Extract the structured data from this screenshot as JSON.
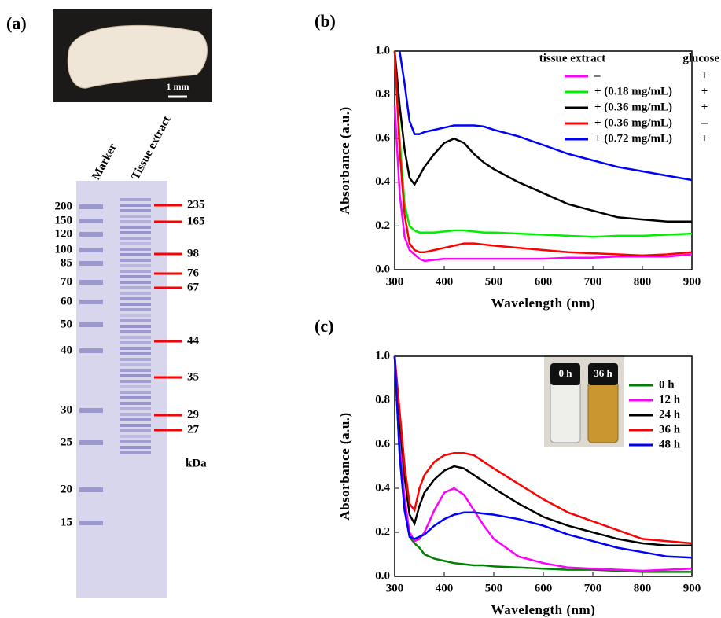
{
  "panel_a": {
    "label": "(a)",
    "scale_bar": "1 mm",
    "lanes": [
      "Marker",
      "Tissue extract"
    ],
    "marker_kda": [
      200,
      150,
      120,
      100,
      85,
      70,
      60,
      50,
      40,
      30,
      25,
      20,
      15
    ],
    "band_kda": [
      235,
      165,
      98,
      76,
      67,
      44,
      35,
      29,
      27
    ],
    "unit": "kDa"
  },
  "chart_data": [
    {
      "type": "line",
      "panel_label": "(b)",
      "xlabel": "Wavelength (nm)",
      "ylabel": "Absorbance (a.u.)",
      "legend_position": "upper right",
      "legend_title": [
        "tissue extract",
        "glucose"
      ],
      "x": [
        300,
        310,
        320,
        330,
        340,
        350,
        360,
        380,
        400,
        420,
        440,
        460,
        480,
        500,
        550,
        600,
        650,
        700,
        750,
        800,
        850,
        900
      ],
      "xlim": [
        300,
        900
      ],
      "xticks": [
        300,
        400,
        500,
        600,
        700,
        800,
        900
      ],
      "ylim": [
        0,
        1.0
      ],
      "yticks": [
        {
          "value": 0,
          "label": "0.0"
        },
        {
          "value": 0.2,
          "label": "0.2"
        },
        {
          "value": 0.4,
          "label": "0.4"
        },
        {
          "value": 0.6,
          "label": "0.6"
        },
        {
          "value": 0.8,
          "label": "0.8"
        },
        {
          "value": 1.0,
          "label": "1.0"
        }
      ],
      "series": [
        {
          "name": "–",
          "glucose": "+",
          "color": "#ff00ff",
          "values": [
            0.75,
            0.35,
            0.15,
            0.09,
            0.07,
            0.05,
            0.04,
            0.045,
            0.05,
            0.05,
            0.05,
            0.05,
            0.05,
            0.05,
            0.05,
            0.05,
            0.055,
            0.055,
            0.06,
            0.06,
            0.06,
            0.07
          ]
        },
        {
          "name": "+ (0.18 mg/mL)",
          "glucose": "+",
          "color": "#00ee00",
          "values": [
            1.0,
            0.6,
            0.3,
            0.2,
            0.18,
            0.17,
            0.17,
            0.17,
            0.175,
            0.18,
            0.18,
            0.175,
            0.17,
            0.17,
            0.165,
            0.16,
            0.155,
            0.15,
            0.155,
            0.155,
            0.16,
            0.165
          ]
        },
        {
          "name": "+ (0.36 mg/mL)",
          "glucose": "+",
          "color": "#000000",
          "values": [
            1.0,
            0.75,
            0.55,
            0.42,
            0.39,
            0.43,
            0.47,
            0.53,
            0.58,
            0.6,
            0.58,
            0.53,
            0.49,
            0.46,
            0.4,
            0.35,
            0.3,
            0.27,
            0.24,
            0.23,
            0.22,
            0.22
          ]
        },
        {
          "name": "+ (0.36 mg/mL)",
          "glucose": "–",
          "color": "#ff0000",
          "values": [
            1.0,
            0.55,
            0.25,
            0.12,
            0.09,
            0.08,
            0.08,
            0.09,
            0.1,
            0.11,
            0.12,
            0.12,
            0.115,
            0.11,
            0.1,
            0.09,
            0.08,
            0.075,
            0.07,
            0.065,
            0.07,
            0.08
          ]
        },
        {
          "name": "+ (0.72 mg/mL)",
          "glucose": "+",
          "color": "#0000ff",
          "values": [
            null,
            1.0,
            0.85,
            0.68,
            0.62,
            0.62,
            0.63,
            0.64,
            0.65,
            0.66,
            0.66,
            0.66,
            0.655,
            0.64,
            0.61,
            0.57,
            0.53,
            0.5,
            0.47,
            0.45,
            0.43,
            0.41
          ]
        }
      ]
    },
    {
      "type": "line",
      "panel_label": "(c)",
      "xlabel": "Wavelength (nm)",
      "ylabel": "Absorbance (a.u.)",
      "legend_position": "upper right",
      "inset_labels": [
        "0 h",
        "36 h"
      ],
      "x": [
        300,
        310,
        320,
        330,
        340,
        350,
        360,
        380,
        400,
        420,
        440,
        460,
        480,
        500,
        550,
        600,
        650,
        700,
        750,
        800,
        850,
        900
      ],
      "xlim": [
        300,
        900
      ],
      "xticks": [
        300,
        400,
        500,
        600,
        700,
        800,
        900
      ],
      "ylim": [
        0,
        1.0
      ],
      "yticks": [
        {
          "value": 0,
          "label": "0.0"
        },
        {
          "value": 0.2,
          "label": "0.2"
        },
        {
          "value": 0.4,
          "label": "0.4"
        },
        {
          "value": 0.6,
          "label": "0.6"
        },
        {
          "value": 0.8,
          "label": "0.8"
        },
        {
          "value": 1.0,
          "label": "1.0"
        }
      ],
      "series": [
        {
          "name": "0 h",
          "color": "#008000",
          "values": [
            1.0,
            0.55,
            0.3,
            0.18,
            0.15,
            0.13,
            0.1,
            0.08,
            0.07,
            0.06,
            0.055,
            0.05,
            0.05,
            0.045,
            0.04,
            0.035,
            0.03,
            0.03,
            0.025,
            0.02,
            0.02,
            0.02
          ]
        },
        {
          "name": "12 h",
          "color": "#ff00ff",
          "values": [
            1.0,
            0.6,
            0.35,
            0.2,
            0.16,
            0.17,
            0.2,
            0.3,
            0.38,
            0.4,
            0.37,
            0.3,
            0.23,
            0.17,
            0.09,
            0.06,
            0.04,
            0.035,
            0.03,
            0.025,
            0.03,
            0.035
          ]
        },
        {
          "name": "24 h",
          "color": "#000000",
          "values": [
            1.0,
            0.7,
            0.45,
            0.28,
            0.24,
            0.32,
            0.38,
            0.44,
            0.48,
            0.5,
            0.49,
            0.46,
            0.43,
            0.4,
            0.33,
            0.27,
            0.23,
            0.2,
            0.17,
            0.15,
            0.14,
            0.14
          ]
        },
        {
          "name": "36 h",
          "color": "#ff0000",
          "values": [
            1.0,
            0.75,
            0.5,
            0.33,
            0.3,
            0.4,
            0.46,
            0.52,
            0.55,
            0.56,
            0.56,
            0.55,
            0.52,
            0.49,
            0.42,
            0.35,
            0.29,
            0.25,
            0.21,
            0.17,
            0.16,
            0.15
          ]
        },
        {
          "name": "48 h",
          "color": "#0000ff",
          "values": [
            1.0,
            0.55,
            0.3,
            0.18,
            0.17,
            0.18,
            0.19,
            0.23,
            0.26,
            0.28,
            0.29,
            0.29,
            0.285,
            0.28,
            0.26,
            0.23,
            0.19,
            0.16,
            0.13,
            0.11,
            0.09,
            0.085
          ]
        }
      ]
    }
  ]
}
